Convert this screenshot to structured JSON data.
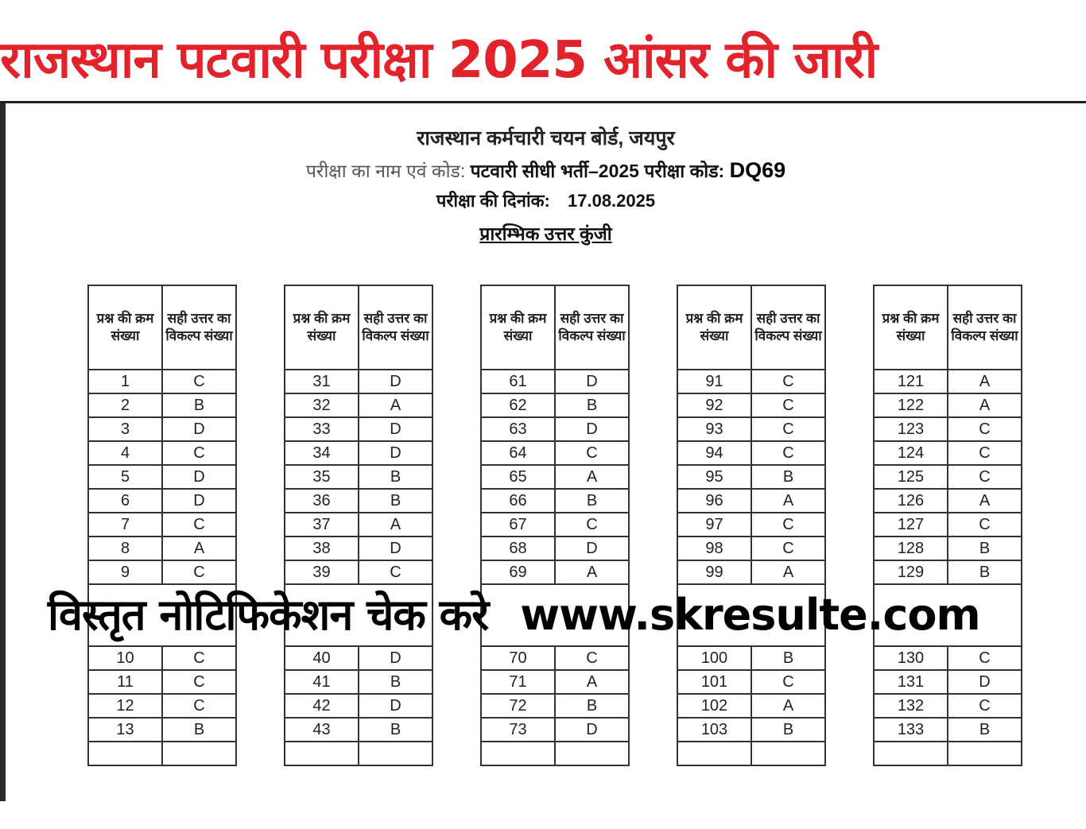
{
  "headline": "राजस्थान पटवारी परीक्षा 2025 आंसर की  जारी",
  "document": {
    "org": "राजस्थान कर्मचारी चयन बोर्ड, जयपुर",
    "exam_label": "परीक्षा का नाम एवं कोड:",
    "exam_name": "पटवारी सीधी भर्ती–2025 परीक्षा कोड:",
    "exam_code": "DQ69",
    "date_label": "परीक्षा की दिनांक:",
    "date": "17.08.2025",
    "key_title": "प्रारम्भिक उत्तर कुंजी"
  },
  "table": {
    "headers": [
      "प्रश्न की क्रम संख्या",
      "सही उत्तर का विकल्प संख्या"
    ],
    "blocks": [
      {
        "rows": [
          [
            "1",
            "C"
          ],
          [
            "2",
            "B"
          ],
          [
            "3",
            "D"
          ],
          [
            "4",
            "C"
          ],
          [
            "5",
            "D"
          ],
          [
            "6",
            "D"
          ],
          [
            "7",
            "C"
          ],
          [
            "8",
            "A"
          ],
          [
            "9",
            "C"
          ],
          [
            "10",
            "C"
          ],
          [
            "11",
            "C"
          ],
          [
            "12",
            "C"
          ],
          [
            "13",
            "B"
          ]
        ]
      },
      {
        "rows": [
          [
            "31",
            "D"
          ],
          [
            "32",
            "A"
          ],
          [
            "33",
            "D"
          ],
          [
            "34",
            "D"
          ],
          [
            "35",
            "B"
          ],
          [
            "36",
            "B"
          ],
          [
            "37",
            "A"
          ],
          [
            "38",
            "D"
          ],
          [
            "39",
            "C"
          ],
          [
            "40",
            "D"
          ],
          [
            "41",
            "B"
          ],
          [
            "42",
            "D"
          ],
          [
            "43",
            "B"
          ]
        ]
      },
      {
        "rows": [
          [
            "61",
            "D"
          ],
          [
            "62",
            "B"
          ],
          [
            "63",
            "D"
          ],
          [
            "64",
            "C"
          ],
          [
            "65",
            "A"
          ],
          [
            "66",
            "B"
          ],
          [
            "67",
            "C"
          ],
          [
            "68",
            "D"
          ],
          [
            "69",
            "A"
          ],
          [
            "70",
            "C"
          ],
          [
            "71",
            "A"
          ],
          [
            "72",
            "B"
          ],
          [
            "73",
            "D"
          ]
        ]
      },
      {
        "rows": [
          [
            "91",
            "C"
          ],
          [
            "92",
            "C"
          ],
          [
            "93",
            "C"
          ],
          [
            "94",
            "C"
          ],
          [
            "95",
            "B"
          ],
          [
            "96",
            "A"
          ],
          [
            "97",
            "C"
          ],
          [
            "98",
            "C"
          ],
          [
            "99",
            "A"
          ],
          [
            "100",
            "B"
          ],
          [
            "101",
            "C"
          ],
          [
            "102",
            "A"
          ],
          [
            "103",
            "B"
          ]
        ]
      },
      {
        "rows": [
          [
            "121",
            "A"
          ],
          [
            "122",
            "A"
          ],
          [
            "123",
            "C"
          ],
          [
            "124",
            "C"
          ],
          [
            "125",
            "C"
          ],
          [
            "126",
            "A"
          ],
          [
            "127",
            "C"
          ],
          [
            "128",
            "B"
          ],
          [
            "129",
            "B"
          ],
          [
            "130",
            "C"
          ],
          [
            "131",
            "D"
          ],
          [
            "132",
            "C"
          ],
          [
            "133",
            "B"
          ]
        ]
      }
    ]
  },
  "overlay": {
    "text": "विस्तृत नोटिफिकेशन चेक करे",
    "url": "www.skresulte.com"
  },
  "colors": {
    "headline": "#e3232c",
    "text": "#222222"
  }
}
